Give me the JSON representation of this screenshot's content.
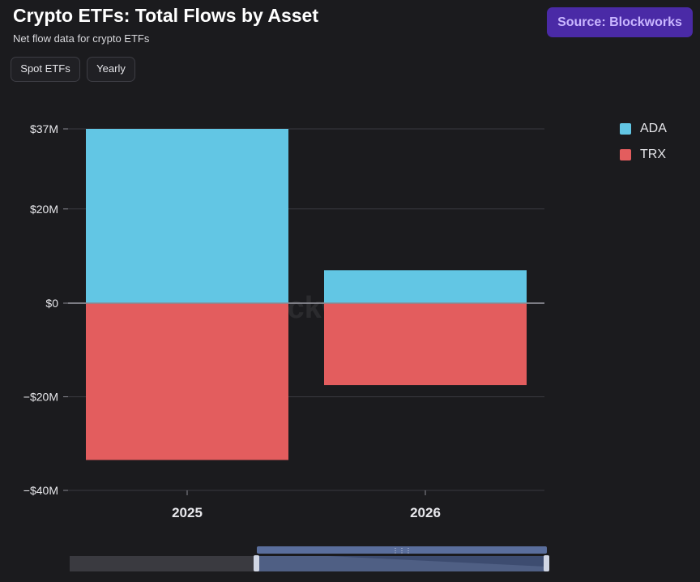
{
  "header": {
    "title": "Crypto ETFs: Total Flows by Asset",
    "subtitle": "Net flow data for crypto ETFs",
    "source_label": "Source: Blockworks"
  },
  "filters": [
    {
      "label": "Spot ETFs"
    },
    {
      "label": "Yearly"
    }
  ],
  "watermark": "Blockworks",
  "chart_data": {
    "type": "bar",
    "stacked": true,
    "categories": [
      "2025",
      "2026"
    ],
    "series": [
      {
        "name": "ADA",
        "color": "#62c6e4",
        "values": [
          37,
          7
        ]
      },
      {
        "name": "TRX",
        "color": "#e35d5e",
        "values": [
          -33.5,
          -17.5
        ]
      }
    ],
    "ylim": [
      -40,
      37
    ],
    "yticks": [
      {
        "value": 37,
        "label": "$37M"
      },
      {
        "value": 20,
        "label": "$20M"
      },
      {
        "value": 0,
        "label": "$0"
      },
      {
        "value": -20,
        "label": "−$20M"
      },
      {
        "value": -40,
        "label": "−$40M"
      }
    ],
    "grid": true,
    "legend_position": "top-right",
    "title": "Crypto ETFs: Total Flows by Asset",
    "xlabel": "",
    "ylabel": ""
  }
}
